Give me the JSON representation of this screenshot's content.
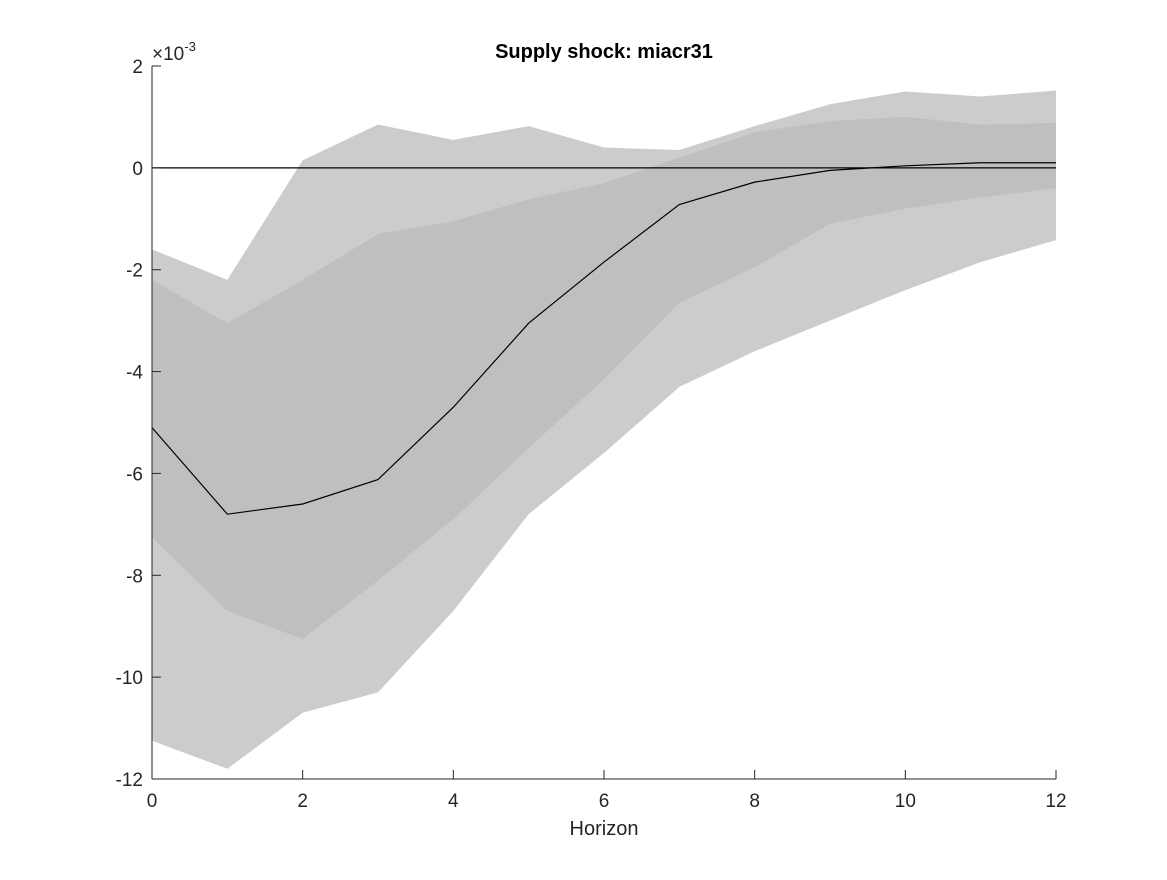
{
  "chart_data": {
    "type": "area",
    "title": "Supply shock: miacr31",
    "xlabel": "Horizon",
    "ylabel": "",
    "y_exponent_base": "×10",
    "y_exponent_power": "-3",
    "xlim": [
      0,
      12
    ],
    "ylim": [
      -12,
      2
    ],
    "x_ticks": [
      0,
      2,
      4,
      6,
      8,
      10,
      12
    ],
    "y_ticks": [
      -12,
      -10,
      -8,
      -6,
      -4,
      -2,
      0,
      2
    ],
    "x": [
      0,
      1,
      2,
      3,
      4,
      5,
      6,
      7,
      8,
      9,
      10,
      11,
      12
    ],
    "zero_line": 0,
    "series": [
      {
        "name": "outer band upper",
        "values": [
          -1.6,
          -2.2,
          0.15,
          0.85,
          0.55,
          0.82,
          0.4,
          0.35,
          0.82,
          1.25,
          1.5,
          1.4,
          1.52
        ]
      },
      {
        "name": "outer band lower",
        "values": [
          -11.25,
          -11.8,
          -10.7,
          -10.3,
          -8.7,
          -6.8,
          -5.6,
          -4.3,
          -3.6,
          -3.0,
          -2.4,
          -1.85,
          -1.42
        ]
      },
      {
        "name": "inner band upper",
        "values": [
          -2.2,
          -3.05,
          -2.2,
          -1.3,
          -1.05,
          -0.62,
          -0.3,
          0.2,
          0.7,
          0.92,
          1.0,
          0.85,
          0.88
        ]
      },
      {
        "name": "inner band lower",
        "values": [
          -7.25,
          -8.7,
          -9.25,
          -8.1,
          -6.9,
          -5.5,
          -4.15,
          -2.65,
          -1.95,
          -1.1,
          -0.8,
          -0.58,
          -0.4
        ]
      },
      {
        "name": "median response",
        "values": [
          -5.1,
          -6.8,
          -6.6,
          -6.12,
          -4.7,
          -3.05,
          -1.85,
          -0.72,
          -0.28,
          -0.05,
          0.04,
          0.1,
          0.1
        ]
      }
    ],
    "colors": {
      "outer_band": "#cccccc",
      "inner_band": "#bfbfbf",
      "median_line": "#000000",
      "zero_line": "#000000",
      "axis": "#262626"
    }
  }
}
